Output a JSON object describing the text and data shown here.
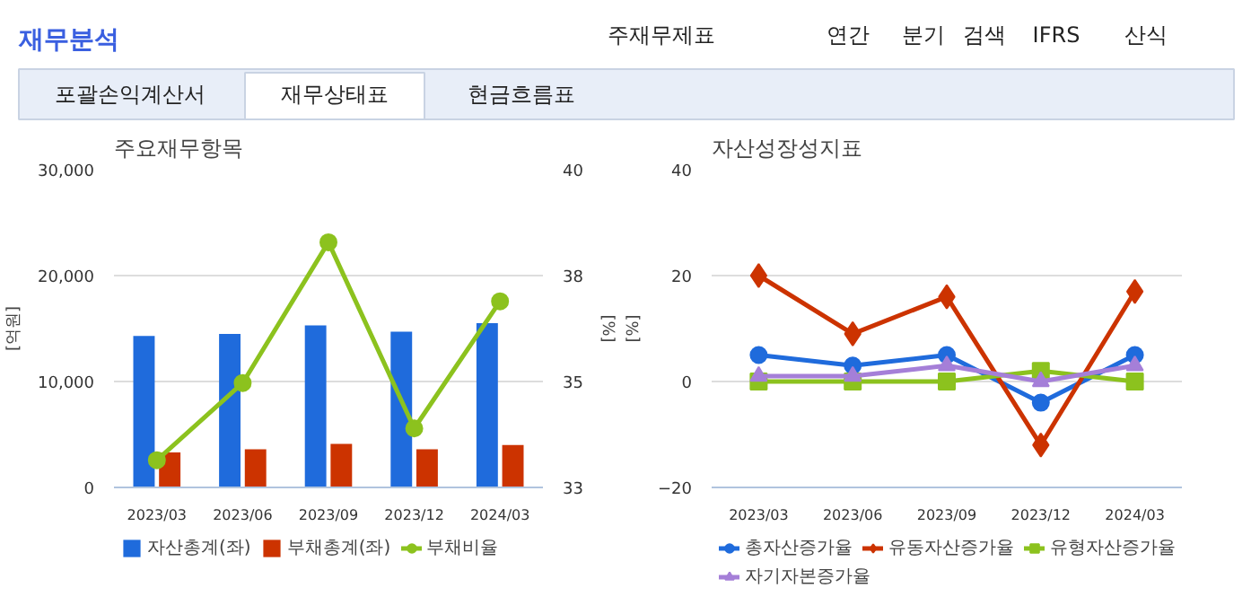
{
  "chart_data": [
    {
      "type": "other",
      "title": "재무분석",
      "annotations": [
        "주재무제표",
        "연간",
        "분기",
        "검색",
        "IFRS",
        "산식",
        "포괄손익계산서",
        "재무상태표",
        "현금흐름표"
      ]
    },
    {
      "type": "bar",
      "title": "주요재무항목",
      "ylabel": "[억원]",
      "y2label": "[%]",
      "categories": [
        "2023/03",
        "2023/06",
        "2023/09",
        "2023/12",
        "2024/03"
      ],
      "series": [
        {
          "name": "자산총계(좌)",
          "color": "#1f6bdc",
          "values": [
            14300,
            14500,
            15300,
            14700,
            15500
          ]
        },
        {
          "name": "부채총계(좌)",
          "color": "#cc3300",
          "values": [
            3300,
            3600,
            4100,
            3600,
            4000
          ]
        },
        {
          "name": "부채비율",
          "type": "line",
          "axis": "y2",
          "marker": "circle",
          "color": "#8cc21e",
          "values": [
            33.6,
            35.3,
            38.4,
            34.3,
            37.1
          ]
        }
      ],
      "ylim": [
        0,
        30000
      ],
      "yticks": [
        0,
        {
          "value": 10000,
          "label": "10,000"
        },
        {
          "value": 20000,
          "label": "20,000"
        },
        {
          "value": 30000,
          "label": "30,000"
        }
      ],
      "y2lim": [
        33,
        40
      ],
      "y2ticks": [
        33,
        {
          "value": 35.33,
          "label": "35"
        },
        {
          "value": 37.67,
          "label": "38"
        },
        40
      ],
      "grid": "y",
      "legend": "bottom"
    },
    {
      "type": "line",
      "title": "자산성장성지표",
      "ylabel": "[%]",
      "categories": [
        "2023/03",
        "2023/06",
        "2023/09",
        "2023/12",
        "2024/03"
      ],
      "series": [
        {
          "name": "총자산증가율",
          "color": "#1f6bdc",
          "marker": "circle",
          "values": [
            5,
            3,
            5,
            -4,
            5
          ]
        },
        {
          "name": "유동자산증가율",
          "color": "#cc3300",
          "marker": "diamond",
          "values": [
            20,
            9,
            16,
            -12,
            17
          ]
        },
        {
          "name": "유형자산증가율",
          "color": "#8cc21e",
          "marker": "square",
          "values": [
            0,
            0,
            0,
            2,
            0
          ]
        },
        {
          "name": "자기자본증가율",
          "color": "#a57fd8",
          "marker": "triangle",
          "values": [
            1,
            1,
            3,
            0,
            3
          ]
        }
      ],
      "ylim": [
        -20,
        40
      ],
      "yticks": [
        -20,
        0,
        20,
        40
      ],
      "grid": "y",
      "legend": "bottom"
    }
  ]
}
